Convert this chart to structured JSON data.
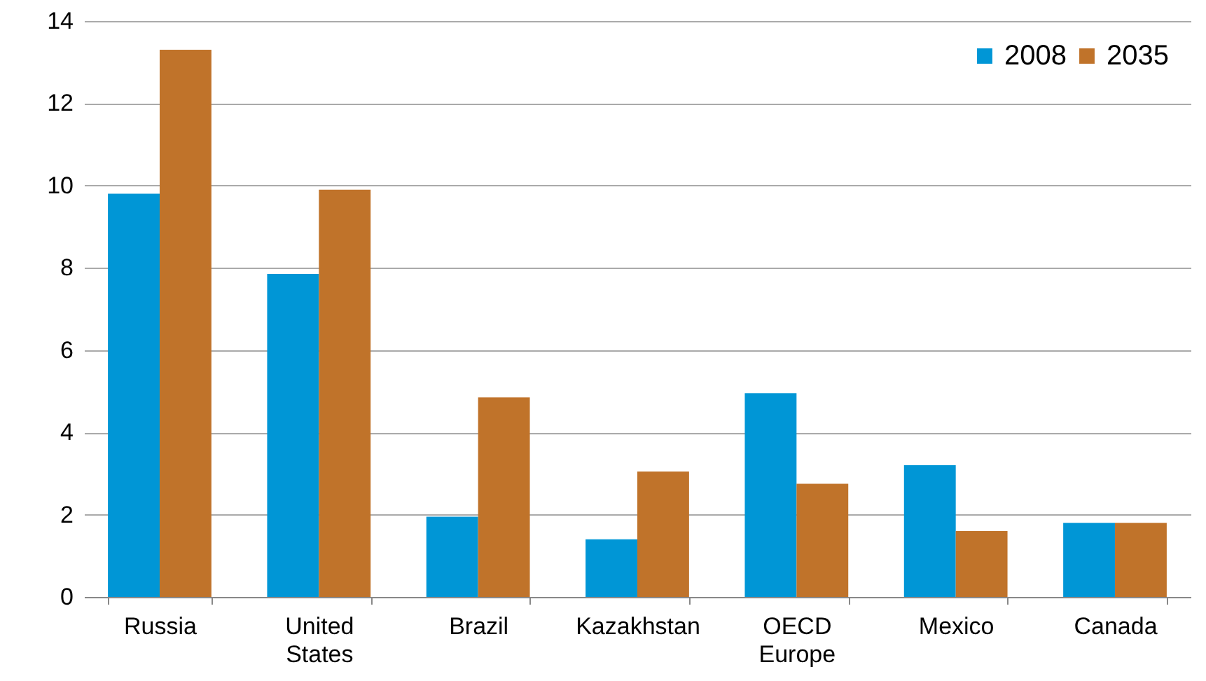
{
  "chart_data": {
    "type": "bar",
    "categories": [
      "Russia",
      "United States",
      "Brazil",
      "Kazakhstan",
      "OECD Europe",
      "Mexico",
      "Canada"
    ],
    "series": [
      {
        "name": "2008",
        "color": "#0096d6",
        "values": [
          9.8,
          7.85,
          1.95,
          1.4,
          4.95,
          3.2,
          1.8
        ]
      },
      {
        "name": "2035",
        "color": "#c0732a",
        "values": [
          13.3,
          9.9,
          4.85,
          3.05,
          2.75,
          1.6,
          1.8
        ]
      }
    ],
    "ylim": [
      0,
      14
    ],
    "yticks": [
      0,
      2,
      4,
      6,
      8,
      10,
      12,
      14
    ],
    "grid": "y",
    "legend": "top right"
  }
}
